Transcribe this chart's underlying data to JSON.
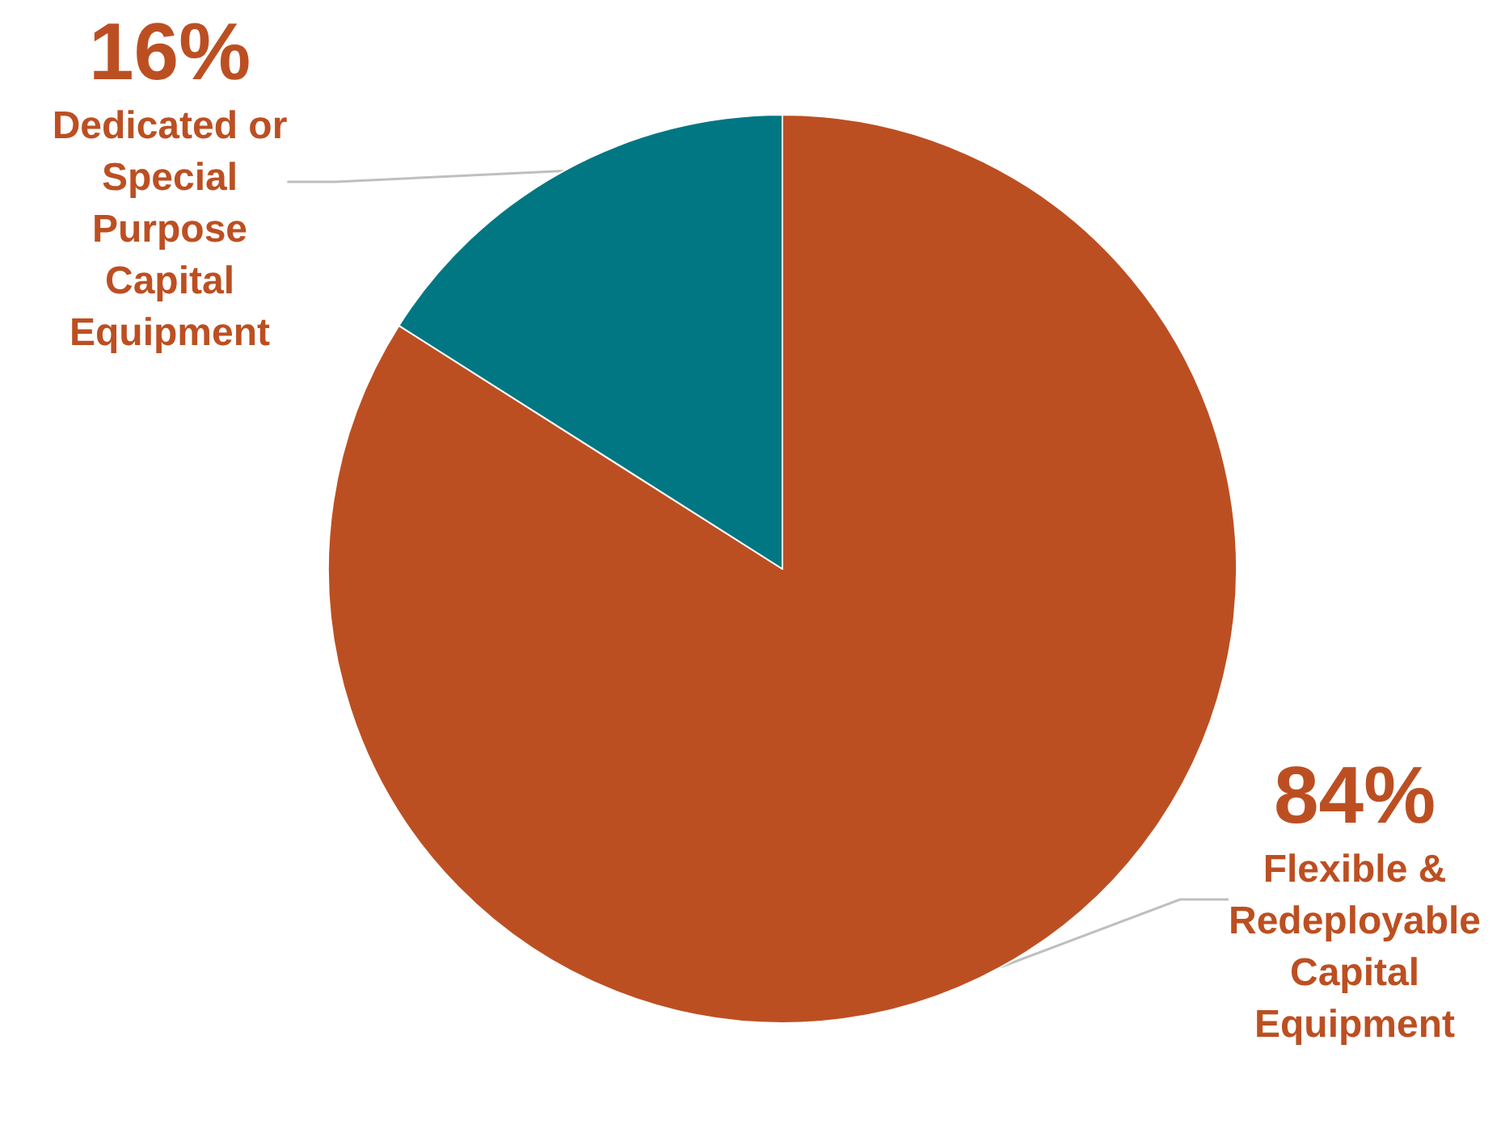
{
  "chart_data": {
    "type": "pie",
    "categories": [
      "Flexible & Redeployable Capital Equipment",
      "Dedicated or Special Purpose Capital Equipment"
    ],
    "values": [
      84,
      16
    ],
    "colors": [
      "#bc4f22",
      "#007782"
    ],
    "value_labels": [
      "84%",
      "16%"
    ],
    "legend": false
  }
}
